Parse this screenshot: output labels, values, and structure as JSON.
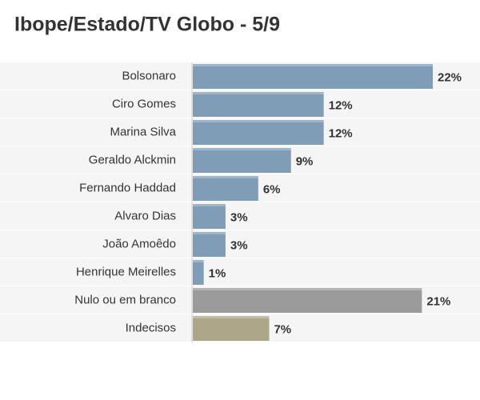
{
  "chart_data": {
    "type": "hbar",
    "title": "Ibope/Estado/TV Globo - 5/9",
    "categories": [
      "Bolsonaro",
      "Ciro Gomes",
      "Marina Silva",
      "Geraldo Alckmin",
      "Fernando Haddad",
      "Alvaro Dias",
      "João Amoêdo",
      "Henrique Meirelles",
      "Nulo ou em branco",
      "Indecisos"
    ],
    "values": [
      22,
      12,
      12,
      9,
      6,
      3,
      3,
      1,
      21,
      7
    ],
    "value_labels": [
      "22%",
      "12%",
      "12%",
      "9%",
      "6%",
      "3%",
      "3%",
      "1%",
      "21%",
      "7%"
    ],
    "colors": [
      "#7f9db6",
      "#7f9db6",
      "#7f9db6",
      "#7f9db6",
      "#7f9db6",
      "#7f9db6",
      "#7f9db6",
      "#7f9db6",
      "#9b9b9b",
      "#ada689"
    ]
  }
}
